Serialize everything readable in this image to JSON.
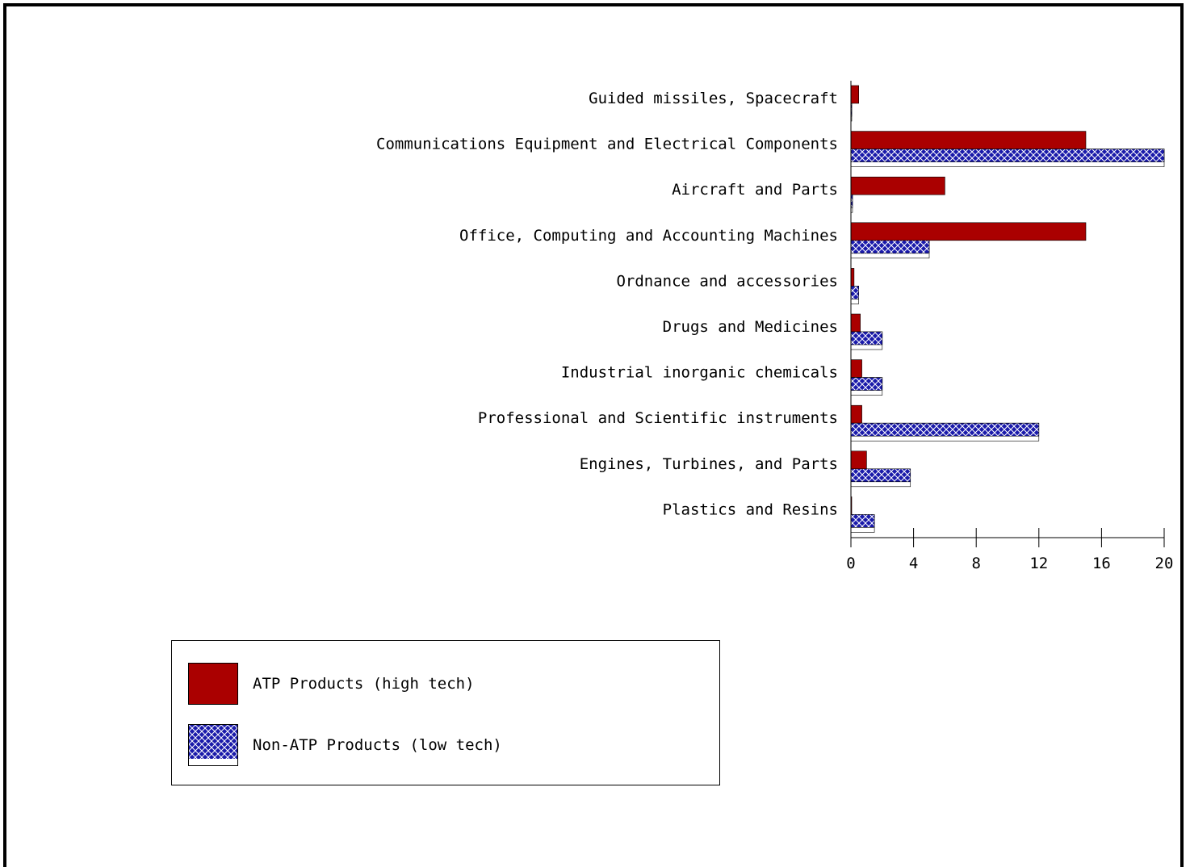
{
  "chart_data": {
    "type": "bar",
    "orientation": "horizontal",
    "title": "",
    "xlabel": "",
    "ylabel": "",
    "categories": [
      "Guided missiles, Spacecraft",
      "Communications Equipment and Electrical Components",
      "Aircraft and Parts",
      "Office, Computing and Accounting Machines",
      "Ordnance and accessories",
      "Drugs and Medicines",
      "Industrial inorganic chemicals",
      "Professional and Scientific instruments",
      "Engines, Turbines, and Parts",
      "Plastics and Resins"
    ],
    "series": [
      {
        "name": "ATP Products (high tech)",
        "color": "#aa0000",
        "values": [
          0.5,
          15,
          6,
          15,
          0.2,
          0.6,
          0.7,
          0.7,
          1.0,
          0.05
        ]
      },
      {
        "name": "Non-ATP Products (low tech)",
        "color": "#1a1aaa",
        "pattern": "crosshatch",
        "values": [
          0.05,
          20,
          0.1,
          5,
          0.5,
          2,
          2,
          12,
          3.8,
          1.5
        ]
      }
    ],
    "xlim": [
      0,
      20
    ],
    "xticks": [
      "0",
      "4",
      "8",
      "12",
      "16",
      "20"
    ],
    "xtick_values": [
      0,
      4,
      8,
      12,
      16,
      20
    ],
    "grid": false,
    "legend_position": "bottom-left"
  }
}
